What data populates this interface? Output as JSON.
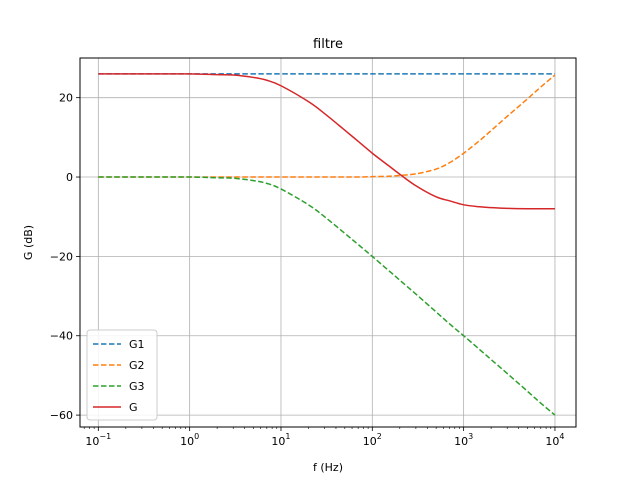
{
  "chart_data": {
    "type": "line",
    "title": "filtre",
    "xlabel": "f (Hz)",
    "ylabel": "G (dB)",
    "xscale": "log",
    "xlim": [
      0.063,
      17000
    ],
    "ylim": [
      -63,
      30
    ],
    "grid": true,
    "legend_position": "lower-left",
    "x_ticks": [
      {
        "value": 0.1,
        "base": "10",
        "exp": "−1"
      },
      {
        "value": 1,
        "base": "10",
        "exp": "0"
      },
      {
        "value": 10,
        "base": "10",
        "exp": "1"
      },
      {
        "value": 100,
        "base": "10",
        "exp": "2"
      },
      {
        "value": 1000,
        "base": "10",
        "exp": "3"
      },
      {
        "value": 10000,
        "base": "10",
        "exp": "4"
      }
    ],
    "y_ticks": [
      {
        "value": 20,
        "label": "20"
      },
      {
        "value": 0,
        "label": "0"
      },
      {
        "value": -20,
        "label": "−20"
      },
      {
        "value": -40,
        "label": "−40"
      },
      {
        "value": -60,
        "label": "−60"
      }
    ],
    "x": [
      0.1,
      0.3,
      1,
      2,
      3,
      5,
      7,
      10,
      20,
      30,
      50,
      70,
      100,
      150,
      200,
      300,
      500,
      700,
      1000,
      1500,
      2000,
      3000,
      5000,
      7000,
      10000
    ],
    "series": [
      {
        "name": "G1",
        "color": "#1f77b4",
        "dash": true,
        "values": [
          26,
          26,
          26,
          26,
          26,
          26,
          26,
          26,
          26,
          26,
          26,
          26,
          26,
          26,
          26,
          26,
          26,
          26,
          26,
          26,
          26,
          26,
          26,
          26,
          26
        ]
      },
      {
        "name": "G2",
        "color": "#ff7f0e",
        "dash": true,
        "values": [
          0,
          0,
          0,
          0,
          0,
          0,
          0,
          0,
          0,
          0,
          0,
          0,
          0.1,
          0.2,
          0.4,
          0.8,
          2.0,
          3.6,
          6.0,
          9.2,
          11.7,
          15.3,
          19.7,
          22.7,
          25.7
        ]
      },
      {
        "name": "G3",
        "color": "#2ca02c",
        "dash": true,
        "values": [
          0,
          0,
          0,
          -0.2,
          -0.3,
          -0.9,
          -1.6,
          -3.0,
          -7.0,
          -10.0,
          -14.2,
          -17.0,
          -20.0,
          -23.5,
          -26.0,
          -29.5,
          -34.0,
          -37.0,
          -40.0,
          -43.5,
          -46.0,
          -49.5,
          -54.0,
          -57.0,
          -60.0
        ]
      },
      {
        "name": "G",
        "color": "#d62728",
        "dash": false,
        "values": [
          26,
          26,
          26,
          25.8,
          25.7,
          25.1,
          24.4,
          23.0,
          19.0,
          16.0,
          11.8,
          9.0,
          6.0,
          2.9,
          0.7,
          -2.2,
          -5.0,
          -6.0,
          -7.0,
          -7.5,
          -7.7,
          -7.9,
          -8.0,
          -8.0,
          -8.0
        ]
      }
    ]
  }
}
